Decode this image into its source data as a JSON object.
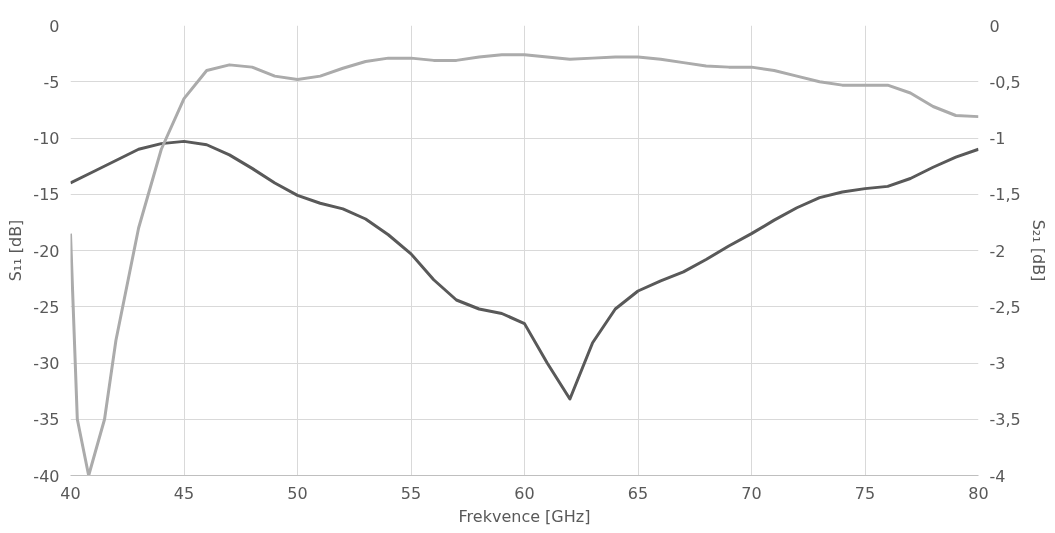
{
  "chart_data": {
    "type": "line",
    "xlabel": "Frekvence [GHz]",
    "ylabel": "S₁₁ [dB]",
    "y2label": "S₂₁ [dB]",
    "xlim": [
      40,
      80
    ],
    "xticks": [
      40,
      45,
      50,
      55,
      60,
      65,
      70,
      75,
      80
    ],
    "ylim": [
      -40,
      0
    ],
    "yticks": [
      -40,
      -35,
      -30,
      -25,
      -20,
      -15,
      -10,
      -5,
      0
    ],
    "y2lim": [
      -4,
      0
    ],
    "y2ticks": [
      {
        "value": -4,
        "label": "-4"
      },
      {
        "value": -3.5,
        "label": "-3,5"
      },
      {
        "value": -3,
        "label": "-3"
      },
      {
        "value": -2.5,
        "label": "-2,5"
      },
      {
        "value": -2,
        "label": "-2"
      },
      {
        "value": -1.5,
        "label": "-1,5"
      },
      {
        "value": -1,
        "label": "-1"
      },
      {
        "value": -0.5,
        "label": "-0,5"
      },
      {
        "value": 0,
        "label": "0"
      }
    ],
    "grid": true,
    "marker": "none",
    "line_style": "solid",
    "series": [
      {
        "color": "#595959",
        "x": [
          40,
          41,
          42,
          43,
          44,
          45,
          46,
          47,
          48,
          49,
          50,
          51,
          52,
          53,
          54,
          55,
          56,
          57,
          58,
          59,
          60,
          61,
          62,
          63,
          64,
          65,
          66,
          67,
          68,
          69,
          70,
          71,
          72,
          73,
          74,
          75,
          76,
          77,
          78,
          79,
          80
        ],
        "values": [
          -14,
          -13,
          -12,
          -11,
          -10.5,
          -10.3,
          -10.6,
          -11.5,
          -12.7,
          -14,
          -15.1,
          -15.8,
          -16.3,
          -17.2,
          -18.6,
          -20.3,
          -22.6,
          -24.4,
          -25.2,
          -25.6,
          -26.5,
          -30,
          -33.2,
          -28.2,
          -25.2,
          -23.6,
          -22.7,
          -21.9,
          -20.8,
          -19.6,
          -18.5,
          -17.3,
          -16.2,
          -15.3,
          -14.8,
          -14.5,
          -14.3,
          -13.6,
          -12.6,
          -11.7,
          -11
        ]
      },
      {
        "color": "#ababab",
        "axis": "y2",
        "x": [
          40,
          40.3,
          40.8,
          41.5,
          42,
          43,
          44,
          45,
          46,
          47,
          48,
          49,
          50,
          51,
          52,
          53,
          54,
          55,
          56,
          57,
          58,
          59,
          60,
          61,
          62,
          63,
          64,
          65,
          66,
          67,
          68,
          69,
          70,
          71,
          72,
          73,
          74,
          75,
          76,
          77,
          78,
          79,
          80
        ],
        "values": [
          -1.85,
          -3.5,
          -4.0,
          -3.5,
          -2.8,
          -1.8,
          -1.1,
          -0.65,
          -0.4,
          -0.35,
          -0.37,
          -0.45,
          -0.48,
          -0.45,
          -0.38,
          -0.32,
          -0.29,
          -0.29,
          -0.31,
          -0.31,
          -0.28,
          -0.26,
          -0.26,
          -0.28,
          -0.3,
          -0.29,
          -0.28,
          -0.28,
          -0.3,
          -0.33,
          -0.36,
          -0.37,
          -0.37,
          -0.4,
          -0.45,
          -0.5,
          -0.53,
          -0.53,
          -0.53,
          -0.6,
          -0.72,
          -0.8,
          -0.81
        ]
      }
    ]
  }
}
